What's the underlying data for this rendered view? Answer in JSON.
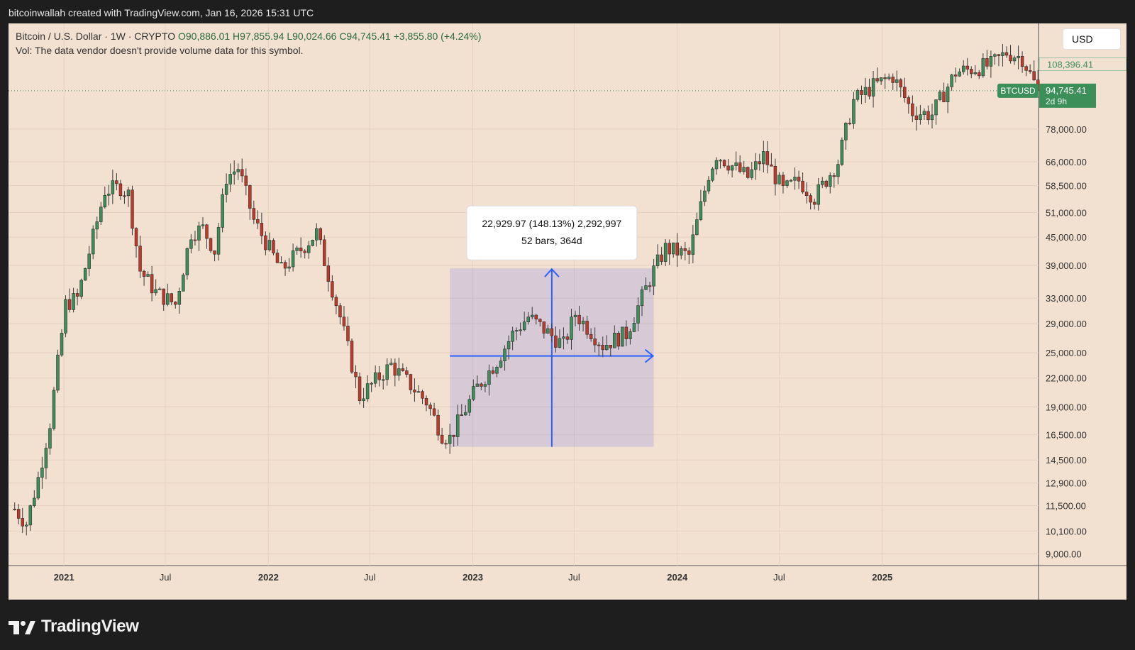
{
  "header": {
    "attribution": "bitcoinwallah created with TradingView.com, Jan 16, 2026 15:31 UTC"
  },
  "legend": {
    "symbol_line": "Bitcoin / U.S. Dollar · 1W · CRYPTO",
    "open": "O90,886.01",
    "high": "H97,855.94",
    "low": "L90,024.66",
    "close": "C94,745.41",
    "change": "+3,855.80 (+4.24%)",
    "volume_note": "Vol: The data vendor doesn't provide volume data for this symbol."
  },
  "currency_button": "USD",
  "price_tags": {
    "high_tag": "108,396.41",
    "symbol_tag": "BTCUSD",
    "last_price": "94,745.41",
    "countdown": "2d 9h"
  },
  "measure_tool": {
    "line1": "22,929.97 (148.13%) 2,292,997",
    "line2": "52 bars, 364d"
  },
  "footer": {
    "brand": "TradingView"
  },
  "colors": {
    "background": "#f2e0d0",
    "up": "#3d8f5a",
    "down": "#c0392b",
    "measure": "#2962ff"
  },
  "chart_data": {
    "type": "candlestick",
    "title": "Bitcoin / U.S. Dollar · 1W · CRYPTO",
    "y_scale": "log",
    "y_ticks": [
      9000,
      10100,
      11500,
      12900,
      14500,
      16500,
      19000,
      22000,
      25000,
      29000,
      33000,
      39000,
      45000,
      51000,
      58500,
      66000,
      78000,
      108396.41
    ],
    "y_tick_labels": [
      "9,000.00",
      "10,100.00",
      "11,500.00",
      "12,900.00",
      "14,500.00",
      "16,500.00",
      "19,000.00",
      "22,000.00",
      "25,000.00",
      "29,000.00",
      "33,000.00",
      "39,000.00",
      "45,000.00",
      "51,000.00",
      "58,500.00",
      "66,000.00",
      "78,000.00",
      "108,396.41"
    ],
    "x_ticks": [
      {
        "label": "2021",
        "date": "2021-01-01",
        "bold": true
      },
      {
        "label": "Jul",
        "date": "2021-07-01",
        "bold": false
      },
      {
        "label": "2022",
        "date": "2022-01-01",
        "bold": true
      },
      {
        "label": "Jul",
        "date": "2022-07-01",
        "bold": false
      },
      {
        "label": "2023",
        "date": "2023-01-01",
        "bold": true
      },
      {
        "label": "Jul",
        "date": "2023-07-01",
        "bold": false
      },
      {
        "label": "2024",
        "date": "2024-01-01",
        "bold": true
      },
      {
        "label": "Jul",
        "date": "2024-07-01",
        "bold": false
      },
      {
        "label": "2025",
        "date": "2025-01-01",
        "bold": true
      }
    ],
    "x_range": [
      "2020-09-24",
      "2025-10-07"
    ],
    "last_close": 94745.41,
    "measure": {
      "start_date": "2022-11-21",
      "end_date": "2023-11-20",
      "low": 15500,
      "high": 38400
    },
    "anchors": [
      {
        "date": "2020-10-05",
        "price": 11300
      },
      {
        "date": "2020-10-26",
        "price": 10500
      },
      {
        "date": "2020-11-16",
        "price": 13200
      },
      {
        "date": "2020-12-07",
        "price": 17500
      },
      {
        "date": "2021-01-04",
        "price": 32000
      },
      {
        "date": "2021-01-25",
        "price": 33000
      },
      {
        "date": "2021-02-22",
        "price": 45000
      },
      {
        "date": "2021-03-15",
        "price": 57000
      },
      {
        "date": "2021-04-12",
        "price": 58000
      },
      {
        "date": "2021-04-26",
        "price": 56000
      },
      {
        "date": "2021-05-17",
        "price": 38000
      },
      {
        "date": "2021-06-14",
        "price": 34000
      },
      {
        "date": "2021-07-19",
        "price": 32000
      },
      {
        "date": "2021-08-16",
        "price": 46000
      },
      {
        "date": "2021-09-06",
        "price": 47000
      },
      {
        "date": "2021-09-27",
        "price": 42000
      },
      {
        "date": "2021-10-18",
        "price": 61000
      },
      {
        "date": "2021-11-08",
        "price": 64000
      },
      {
        "date": "2021-12-06",
        "price": 49000
      },
      {
        "date": "2022-01-24",
        "price": 38000
      },
      {
        "date": "2022-03-28",
        "price": 46000
      },
      {
        "date": "2022-05-09",
        "price": 30000
      },
      {
        "date": "2022-06-13",
        "price": 20000
      },
      {
        "date": "2022-08-08",
        "price": 23500
      },
      {
        "date": "2022-10-10",
        "price": 19500
      },
      {
        "date": "2022-11-07",
        "price": 16500
      },
      {
        "date": "2022-11-21",
        "price": 16200
      },
      {
        "date": "2023-01-09",
        "price": 21000
      },
      {
        "date": "2023-02-13",
        "price": 24000
      },
      {
        "date": "2023-03-13",
        "price": 27500
      },
      {
        "date": "2023-04-10",
        "price": 30000
      },
      {
        "date": "2023-06-12",
        "price": 26000
      },
      {
        "date": "2023-07-03",
        "price": 30500
      },
      {
        "date": "2023-08-21",
        "price": 26000
      },
      {
        "date": "2023-10-02",
        "price": 27500
      },
      {
        "date": "2023-11-20",
        "price": 38000
      },
      {
        "date": "2023-12-11",
        "price": 42500
      },
      {
        "date": "2024-01-22",
        "price": 41000
      },
      {
        "date": "2024-02-26",
        "price": 62000
      },
      {
        "date": "2024-03-11",
        "price": 68500
      },
      {
        "date": "2024-05-06",
        "price": 61000
      },
      {
        "date": "2024-06-03",
        "price": 68000
      },
      {
        "date": "2024-07-08",
        "price": 57000
      },
      {
        "date": "2024-08-05",
        "price": 60000
      },
      {
        "date": "2024-09-02",
        "price": 55000
      },
      {
        "date": "2024-10-14",
        "price": 66000
      },
      {
        "date": "2024-11-11",
        "price": 90000
      },
      {
        "date": "2024-12-16",
        "price": 97000
      },
      {
        "date": "2025-01-20",
        "price": 102000
      },
      {
        "date": "2025-02-24",
        "price": 85000
      },
      {
        "date": "2025-03-31",
        "price": 84000
      },
      {
        "date": "2025-05-12",
        "price": 104000
      },
      {
        "date": "2025-07-14",
        "price": 108000
      },
      {
        "date": "2025-08-11",
        "price": 115000
      },
      {
        "date": "2025-09-08",
        "price": 112000
      },
      {
        "date": "2025-10-06",
        "price": 94745.41
      }
    ]
  }
}
